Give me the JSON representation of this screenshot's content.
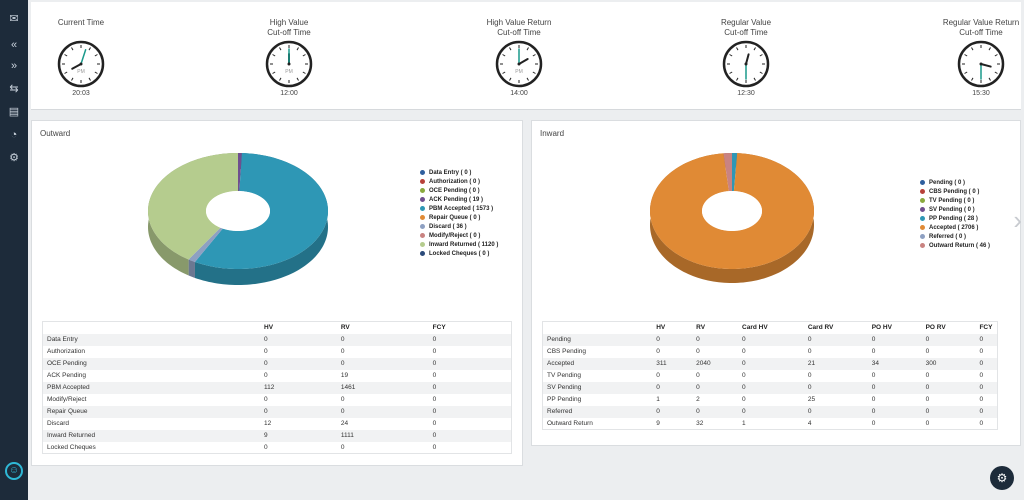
{
  "sidebar": {
    "icons": [
      "mail-icon",
      "collapse-icon",
      "expand-icon",
      "transfer-icon",
      "report-icon",
      "pie-icon",
      "gear-icon"
    ],
    "icon_glyphs": [
      "✉",
      "«",
      "»",
      "⇆",
      "▤",
      "◔",
      "⚙"
    ],
    "user_glyph": "☺"
  },
  "clocks": [
    {
      "title": "Current Time",
      "time": "20:03",
      "show_pm": true
    },
    {
      "title": "High Value\nCut-off Time",
      "time": "12:00",
      "show_pm": true
    },
    {
      "title": "High Value Return\nCut-off Time",
      "time": "14:00",
      "show_pm": true
    },
    {
      "title": "Regular Value\nCut-off Time",
      "time": "12:30",
      "show_pm": false
    },
    {
      "title": "Regular Value Return\nCut-off Time",
      "time": "15:30",
      "show_pm": false
    }
  ],
  "clock_pm_label": "PM",
  "outward": {
    "title": "Outward",
    "legend": [
      {
        "label": "Data Entry ( 0 )",
        "color": "#2f5f9e"
      },
      {
        "label": "Authorization ( 0 )",
        "color": "#b7413a"
      },
      {
        "label": "OCE Pending ( 0 )",
        "color": "#8aa93e"
      },
      {
        "label": "ACK Pending ( 19 )",
        "color": "#6f4f8f"
      },
      {
        "label": "PBM Accepted ( 1573 )",
        "color": "#2e97b5"
      },
      {
        "label": "Repair Queue ( 0 )",
        "color": "#e08a35"
      },
      {
        "label": "Discard ( 36 )",
        "color": "#8ea0c2"
      },
      {
        "label": "Modify/Reject ( 0 )",
        "color": "#c98381"
      },
      {
        "label": "Inward Returned ( 1120 )",
        "color": "#b5cc8e"
      },
      {
        "label": "Locked Cheques ( 0 )",
        "color": "#2b4a7a"
      }
    ],
    "slices": [
      {
        "value": 19,
        "color": "#6f4f8f"
      },
      {
        "value": 1573,
        "color": "#2e97b5"
      },
      {
        "value": 36,
        "color": "#8ea0c2"
      },
      {
        "value": 1120,
        "color": "#b5cc8e"
      }
    ],
    "table": {
      "headers": [
        "",
        "HV",
        "RV",
        "FCY"
      ],
      "rows": [
        [
          "Data Entry",
          "0",
          "0",
          "0"
        ],
        [
          "Authorization",
          "0",
          "0",
          "0"
        ],
        [
          "OCE Pending",
          "0",
          "0",
          "0"
        ],
        [
          "ACK Pending",
          "0",
          "19",
          "0"
        ],
        [
          "PBM Accepted",
          "112",
          "1461",
          "0"
        ],
        [
          "Modify/Reject",
          "0",
          "0",
          "0"
        ],
        [
          "Repair Queue",
          "0",
          "0",
          "0"
        ],
        [
          "Discard",
          "12",
          "24",
          "0"
        ],
        [
          "Inward Returned",
          "9",
          "1111",
          "0"
        ],
        [
          "Locked Cheques",
          "0",
          "0",
          "0"
        ]
      ]
    }
  },
  "inward": {
    "title": "Inward",
    "legend": [
      {
        "label": "Pending ( 0 )",
        "color": "#2f5f9e"
      },
      {
        "label": "CBS Pending ( 0 )",
        "color": "#b7413a"
      },
      {
        "label": "TV Pending ( 0 )",
        "color": "#8aa93e"
      },
      {
        "label": "SV Pending ( 0 )",
        "color": "#6f4f8f"
      },
      {
        "label": "PP Pending ( 28 )",
        "color": "#2e97b5"
      },
      {
        "label": "Accepted ( 2706 )",
        "color": "#e08a35"
      },
      {
        "label": "Referred ( 0 )",
        "color": "#8ea0c2"
      },
      {
        "label": "Outward Return ( 46 )",
        "color": "#c98381"
      }
    ],
    "slices": [
      {
        "value": 28,
        "color": "#2e97b5"
      },
      {
        "value": 2706,
        "color": "#e08a35"
      },
      {
        "value": 46,
        "color": "#c98381"
      }
    ],
    "table": {
      "headers": [
        "",
        "HV",
        "RV",
        "Card HV",
        "Card RV",
        "PO HV",
        "PO RV",
        "FCY"
      ],
      "rows": [
        [
          "Pending",
          "0",
          "0",
          "0",
          "0",
          "0",
          "0",
          "0"
        ],
        [
          "CBS Pending",
          "0",
          "0",
          "0",
          "0",
          "0",
          "0",
          "0"
        ],
        [
          "Accepted",
          "311",
          "2040",
          "0",
          "21",
          "34",
          "300",
          "0"
        ],
        [
          "TV Pending",
          "0",
          "0",
          "0",
          "0",
          "0",
          "0",
          "0"
        ],
        [
          "SV Pending",
          "0",
          "0",
          "0",
          "0",
          "0",
          "0",
          "0"
        ],
        [
          "PP Pending",
          "1",
          "2",
          "0",
          "25",
          "0",
          "0",
          "0"
        ],
        [
          "Referred",
          "0",
          "0",
          "0",
          "0",
          "0",
          "0",
          "0"
        ],
        [
          "Outward Return",
          "9",
          "32",
          "1",
          "4",
          "0",
          "0",
          "0"
        ]
      ]
    }
  },
  "nav_glyph": "›",
  "settings_glyph": "⚙"
}
